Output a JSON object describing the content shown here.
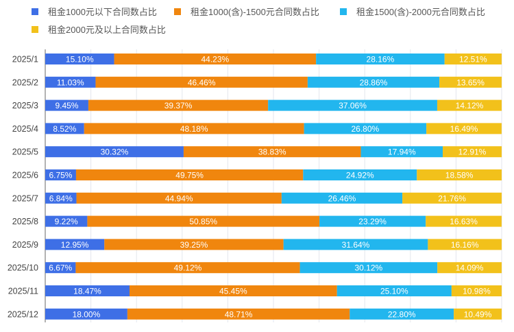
{
  "chart_data": {
    "type": "bar",
    "orientation": "horizontal",
    "stacked": true,
    "categories": [
      "2025/1",
      "2025/2",
      "2025/3",
      "2025/4",
      "2025/5",
      "2025/6",
      "2025/7",
      "2025/8",
      "2025/9",
      "2025/10",
      "2025/11",
      "2025/12"
    ],
    "series": [
      {
        "name": "租金1000元以下合同数占比",
        "color": "#3e6fe6",
        "values": [
          15.1,
          11.03,
          9.45,
          8.52,
          30.32,
          6.75,
          6.84,
          9.22,
          12.95,
          6.67,
          18.47,
          18.0
        ]
      },
      {
        "name": "租金1000(含)-1500元合同数占比",
        "color": "#f0860e",
        "values": [
          44.23,
          46.46,
          39.37,
          48.18,
          38.83,
          49.75,
          44.94,
          50.85,
          39.25,
          49.12,
          45.45,
          48.71
        ]
      },
      {
        "name": "租金1500(含)-2000元合同数占比",
        "color": "#22b6ee",
        "values": [
          28.16,
          28.86,
          37.06,
          26.8,
          17.94,
          24.92,
          26.46,
          23.29,
          31.64,
          30.12,
          25.1,
          22.8
        ]
      },
      {
        "name": "租金2000元及以上合同数占比",
        "color": "#f2c11b",
        "values": [
          12.51,
          13.65,
          14.12,
          16.49,
          12.91,
          18.58,
          21.76,
          16.63,
          16.16,
          14.09,
          10.98,
          10.49
        ]
      }
    ],
    "labels": [
      [
        "15.10%",
        "11.03%",
        "9.45%",
        "8.52%",
        "30.32%",
        "6.75%",
        "6.84%",
        "9.22%",
        "12.95%",
        "6.67%",
        "18.47%",
        "18.00%"
      ],
      [
        "44.23%",
        "46.46%",
        "39.37%",
        "48.18%",
        "38.83%",
        "49.75%",
        "44.94%",
        "50.85%",
        "39.25%",
        "49.12%",
        "45.45%",
        "48.71%"
      ],
      [
        "28.16%",
        "28.86%",
        "37.06%",
        "26.80%",
        "17.94%",
        "24.92%",
        "26.46%",
        "23.29%",
        "31.64%",
        "30.12%",
        "25.10%",
        "22.80%"
      ],
      [
        "12.51%",
        "13.65%",
        "14.12%",
        "16.49%",
        "12.91%",
        "18.58%",
        "21.76%",
        "16.63%",
        "16.16%",
        "14.09%",
        "10.98%",
        "10.49%"
      ]
    ],
    "xlim": [
      0,
      100
    ],
    "grid": true,
    "legend": "top"
  }
}
